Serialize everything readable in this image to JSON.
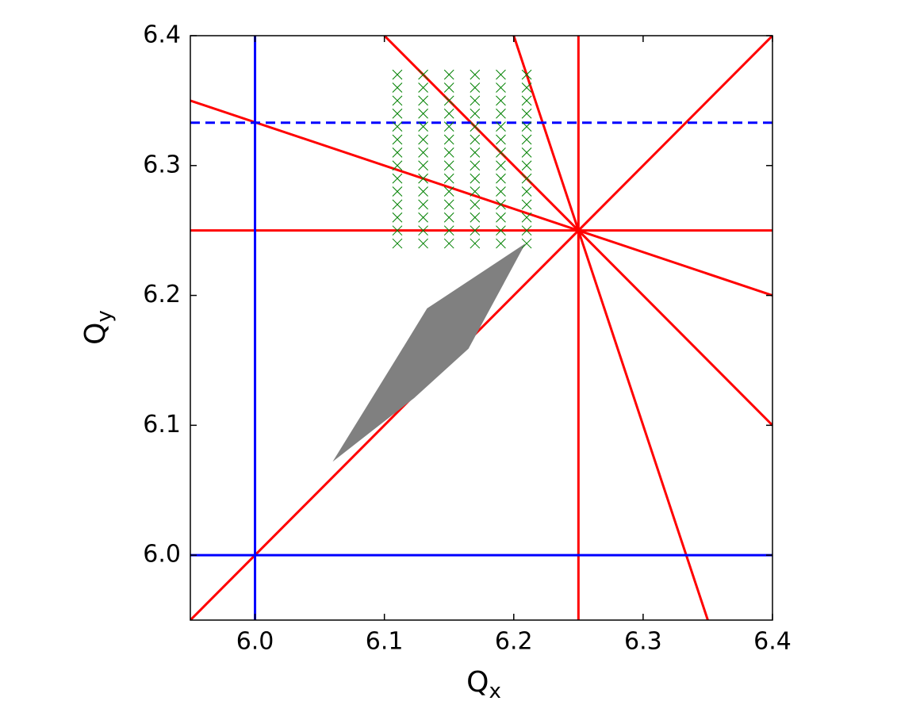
{
  "chart_data": {
    "type": "line",
    "xlabel": {
      "main": "Q",
      "sub": "x"
    },
    "ylabel": {
      "main": "Q",
      "sub": "y"
    },
    "xlim": [
      5.95,
      6.4
    ],
    "ylim": [
      5.95,
      6.4
    ],
    "xticks": [
      {
        "value": 6,
        "label": "6.0"
      },
      6.1,
      6.2,
      6.3,
      6.4
    ],
    "yticks": [
      {
        "value": 6,
        "label": "6.0"
      },
      6.1,
      6.2,
      6.3,
      6.4
    ],
    "series": [
      {
        "type": "line",
        "color": "#ff0000",
        "style": "solid",
        "x": [
          5.95,
          6.4
        ],
        "values": [
          5.95,
          6.4
        ]
      },
      {
        "type": "line",
        "color": "#ff0000",
        "style": "solid",
        "x": [
          5.95,
          6.4
        ],
        "values": [
          6.35,
          6.2
        ]
      },
      {
        "type": "line",
        "color": "#ff0000",
        "style": "solid",
        "x": [
          6.1,
          6.4
        ],
        "values": [
          6.4,
          6.1
        ]
      },
      {
        "type": "line",
        "color": "#ff0000",
        "style": "solid",
        "x": [
          6.2,
          6.35
        ],
        "values": [
          6.4,
          5.95
        ]
      },
      {
        "type": "line",
        "color": "#ff0000",
        "style": "solid",
        "x": [
          6.25,
          6.25
        ],
        "values": [
          5.95,
          6.4
        ]
      },
      {
        "type": "line",
        "color": "#ff0000",
        "style": "solid",
        "x": [
          5.95,
          6.4
        ],
        "values": [
          6.25,
          6.25
        ]
      },
      {
        "type": "line",
        "color": "#0000ff",
        "style": "solid",
        "x": [
          6,
          6
        ],
        "values": [
          5.95,
          6.4
        ]
      },
      {
        "type": "line",
        "color": "#0000ff",
        "style": "solid",
        "x": [
          5.95,
          6.4
        ],
        "values": [
          6,
          6
        ]
      },
      {
        "type": "line",
        "color": "#0000ff",
        "style": "dashed",
        "x": [
          5.95,
          6.4
        ],
        "values": [
          6.333,
          6.333
        ]
      },
      {
        "type": "polygon",
        "color": "#808080",
        "x": [
          6.06,
          6.109,
          6.133,
          6.209,
          6.165,
          6.123
        ],
        "values": [
          6.072,
          6.151,
          6.19,
          6.24,
          6.159,
          6.121
        ]
      },
      {
        "type": "scatter",
        "color": "#008000",
        "x": [
          6.11,
          6.11,
          6.11,
          6.11,
          6.11,
          6.11,
          6.11,
          6.11,
          6.11,
          6.11,
          6.11,
          6.11,
          6.11,
          6.11,
          6.13,
          6.13,
          6.13,
          6.13,
          6.13,
          6.13,
          6.13,
          6.13,
          6.13,
          6.13,
          6.13,
          6.13,
          6.13,
          6.13,
          6.15,
          6.15,
          6.15,
          6.15,
          6.15,
          6.15,
          6.15,
          6.15,
          6.15,
          6.15,
          6.15,
          6.15,
          6.15,
          6.15,
          6.17,
          6.17,
          6.17,
          6.17,
          6.17,
          6.17,
          6.17,
          6.17,
          6.17,
          6.17,
          6.17,
          6.17,
          6.17,
          6.17,
          6.19,
          6.19,
          6.19,
          6.19,
          6.19,
          6.19,
          6.19,
          6.19,
          6.19,
          6.19,
          6.19,
          6.19,
          6.19,
          6.19,
          6.21,
          6.21,
          6.21,
          6.21,
          6.21,
          6.21,
          6.21,
          6.21,
          6.21,
          6.21,
          6.21,
          6.21,
          6.21,
          6.21
        ],
        "values": [
          6.24,
          6.25,
          6.26,
          6.27,
          6.28,
          6.29,
          6.3,
          6.31,
          6.32,
          6.33,
          6.34,
          6.35,
          6.36,
          6.37,
          6.24,
          6.25,
          6.26,
          6.27,
          6.28,
          6.29,
          6.3,
          6.31,
          6.32,
          6.33,
          6.34,
          6.35,
          6.36,
          6.37,
          6.24,
          6.25,
          6.26,
          6.27,
          6.28,
          6.29,
          6.3,
          6.31,
          6.32,
          6.33,
          6.34,
          6.35,
          6.36,
          6.37,
          6.24,
          6.25,
          6.26,
          6.27,
          6.28,
          6.29,
          6.3,
          6.31,
          6.32,
          6.33,
          6.34,
          6.35,
          6.36,
          6.37,
          6.24,
          6.25,
          6.26,
          6.27,
          6.28,
          6.29,
          6.3,
          6.31,
          6.32,
          6.33,
          6.34,
          6.35,
          6.36,
          6.37,
          6.24,
          6.25,
          6.26,
          6.27,
          6.28,
          6.29,
          6.3,
          6.31,
          6.32,
          6.33,
          6.34,
          6.35,
          6.36,
          6.37
        ]
      }
    ]
  }
}
